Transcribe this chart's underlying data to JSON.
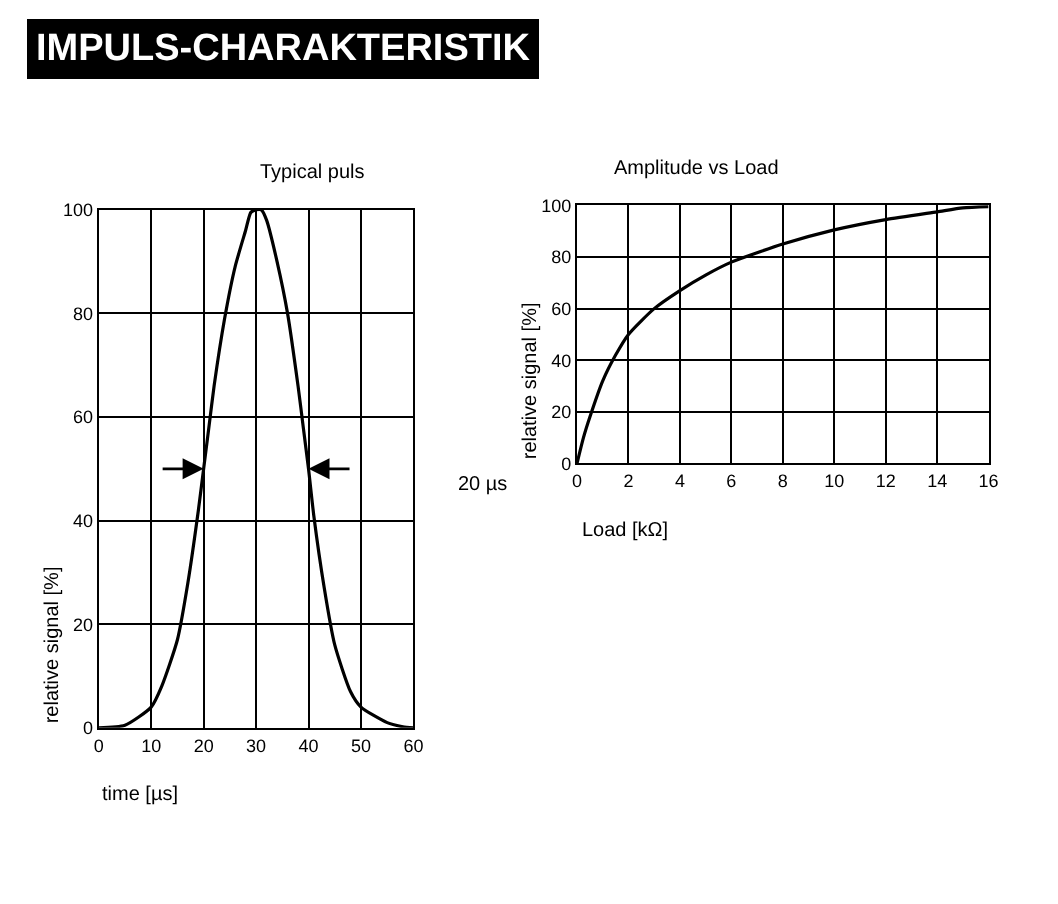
{
  "chart_data": [
    {
      "type": "line",
      "title": "Typical puls",
      "xlabel": "time [µs]",
      "ylabel": "relative signal [%]",
      "annotations": [
        "IMPULS-CHARAKTERISTIK",
        "20 µs"
      ],
      "series": [
        {
          "color": "#000000",
          "x": [
            0,
            5,
            10,
            12,
            15,
            17,
            19,
            20,
            21,
            22,
            24,
            26,
            28,
            29,
            30,
            31,
            32,
            34,
            36,
            38,
            39,
            40,
            41,
            43,
            45,
            48,
            50,
            55,
            58,
            60
          ],
          "values": [
            0,
            0.5,
            4,
            8,
            17,
            28,
            42,
            50,
            58,
            66,
            79,
            89,
            96,
            99.5,
            100,
            100,
            98,
            90,
            80,
            66,
            58,
            50,
            41,
            27,
            16,
            7,
            4,
            1,
            0.2,
            0
          ]
        }
      ],
      "xlim": [
        0,
        60
      ],
      "xticks": [
        0,
        10,
        20,
        30,
        40,
        50,
        60
      ],
      "ylim": [
        0,
        100
      ],
      "yticks": [
        0,
        20,
        40,
        60,
        80,
        100
      ],
      "grid": true,
      "marker": "none",
      "line_style": "solid"
    },
    {
      "type": "line",
      "title": "Amplitude vs Load",
      "xlabel": "Load [kΩ]",
      "ylabel": "relative signal [%]",
      "series": [
        {
          "color": "#000000",
          "x": [
            0,
            0.25,
            0.5,
            1,
            1.5,
            2,
            3,
            4,
            5,
            6,
            8,
            10,
            12,
            14,
            15,
            16
          ],
          "values": [
            0,
            10,
            18,
            32,
            42,
            50,
            60,
            67,
            73,
            78,
            85,
            90.5,
            94.5,
            97.5,
            99,
            99.5
          ]
        }
      ],
      "xlim": [
        0,
        16
      ],
      "xticks": [
        0,
        2,
        4,
        6,
        8,
        10,
        12,
        14,
        16
      ],
      "ylim": [
        0,
        100
      ],
      "yticks": [
        0,
        20,
        40,
        60,
        80,
        100
      ],
      "grid": true,
      "marker": "none",
      "line_style": "solid"
    }
  ]
}
